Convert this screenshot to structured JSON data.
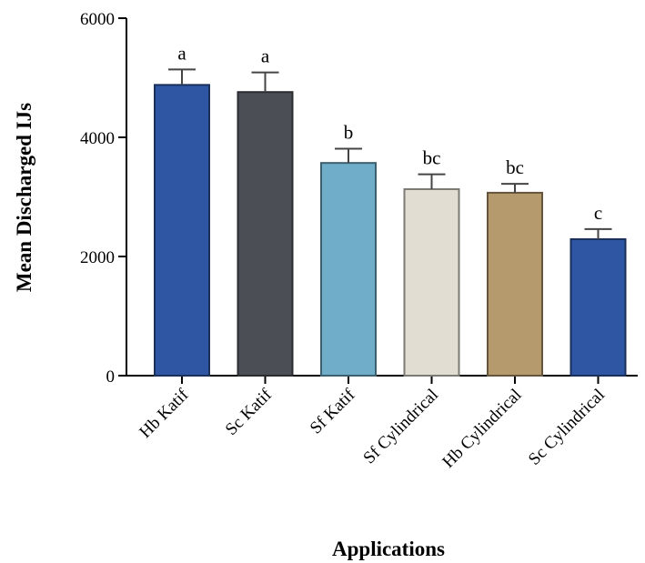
{
  "chart_data": {
    "type": "bar",
    "xlabel": "Applications",
    "ylabel": "Mean Discharged IJs",
    "ylim": [
      0,
      6000
    ],
    "yticks": [
      0,
      2000,
      4000,
      6000
    ],
    "grid": false,
    "categories": [
      "Hb Katif",
      "Sc Katif",
      "Sf Katif",
      "Sf Cylindrical",
      "Hb Cylindrical",
      "Sc Cylindrical"
    ],
    "values": [
      4880,
      4760,
      3570,
      3130,
      3070,
      2290
    ],
    "errors": [
      260,
      330,
      240,
      250,
      150,
      170
    ],
    "significance": [
      "a",
      "a",
      "b",
      "bc",
      "bc",
      "c"
    ],
    "colors": [
      "#2f56a3",
      "#4b4f55",
      "#6fadc8",
      "#e2ddd2",
      "#b59a6d",
      "#2f56a3"
    ]
  }
}
